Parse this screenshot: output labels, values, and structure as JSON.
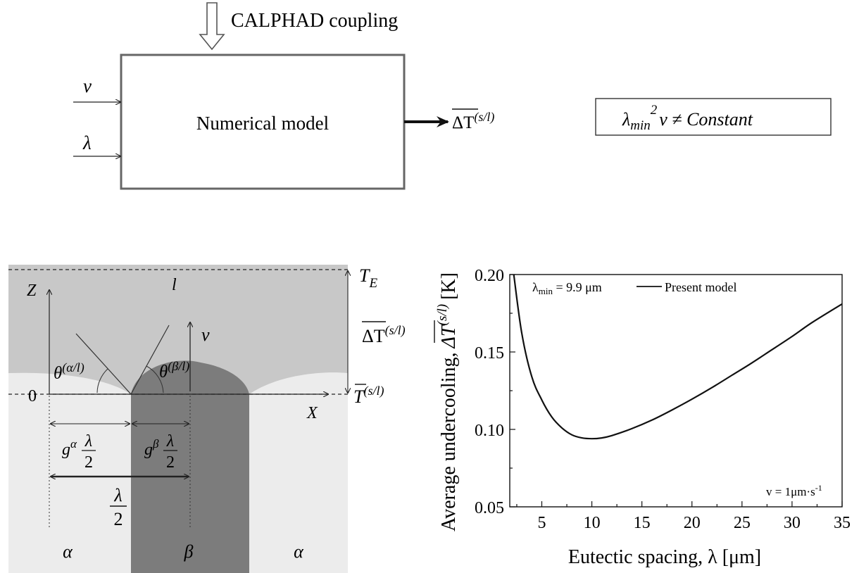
{
  "top_diagram": {
    "coupling_label": "CALPHAD coupling",
    "model_label": "Numerical model",
    "input_v": "v",
    "input_lambda": "λ",
    "output_label": "ΔT",
    "output_sup": "(s/l)",
    "equation": {
      "lambda": "λ",
      "sub": "min",
      "sup": "2",
      "rest": "v ≠ Constant"
    }
  },
  "schematic": {
    "liquid": "l",
    "z_axis": "Z",
    "x_axis": "X",
    "origin": "0",
    "velocity": "v",
    "te": "T",
    "te_sub": "E",
    "dt": "ΔT",
    "dt_sup": "(s/l)",
    "tbar": "T",
    "tbar_sup": "(s/l)",
    "theta_alpha": "θ",
    "theta_alpha_sup": "(α/l)",
    "theta_beta": "θ",
    "theta_beta_sup": "(β/l)",
    "g_alpha": "g",
    "g_alpha_sup": "α",
    "g_beta": "g",
    "g_beta_sup": "β",
    "lambda": "λ",
    "two": "2",
    "phase_alpha": "α",
    "phase_beta": "β"
  },
  "chart_data": {
    "type": "line",
    "series": [
      {
        "name": "Present model",
        "x": [
          2.2,
          3,
          4,
          5,
          6,
          7,
          8,
          9,
          10,
          11,
          12,
          14,
          16,
          18,
          20,
          22,
          24,
          26,
          28,
          30,
          32,
          35
        ],
        "y": [
          0.2,
          0.162,
          0.134,
          0.119,
          0.108,
          0.101,
          0.0965,
          0.0945,
          0.094,
          0.0945,
          0.096,
          0.1005,
          0.106,
          0.1125,
          0.1195,
          0.127,
          0.135,
          0.143,
          0.1515,
          0.16,
          0.169,
          0.181
        ]
      }
    ],
    "xlabel": "Eutectic spacing, λ [μm]",
    "ylabel": "Average undercooling, ΔT(s/l) [K]",
    "ylabel_main": "Average undercooling,",
    "ylabel_sym": "ΔT",
    "ylabel_sup": "(s/l)",
    "ylabel_unit": "[K]",
    "xlim": [
      1.8,
      35
    ],
    "ylim": [
      0.05,
      0.2
    ],
    "x_ticks": [
      "5",
      "10",
      "15",
      "20",
      "25",
      "30",
      "35"
    ],
    "y_ticks": [
      "0.05",
      "0.10",
      "0.15",
      "0.20"
    ],
    "annotation_lambda": "λ",
    "annotation_sub": "min",
    "annotation_value": " = 9.9 μm",
    "legend": "Present model",
    "velocity_note": "v = 1μm·s",
    "velocity_sup": "-1",
    "grid": false
  }
}
